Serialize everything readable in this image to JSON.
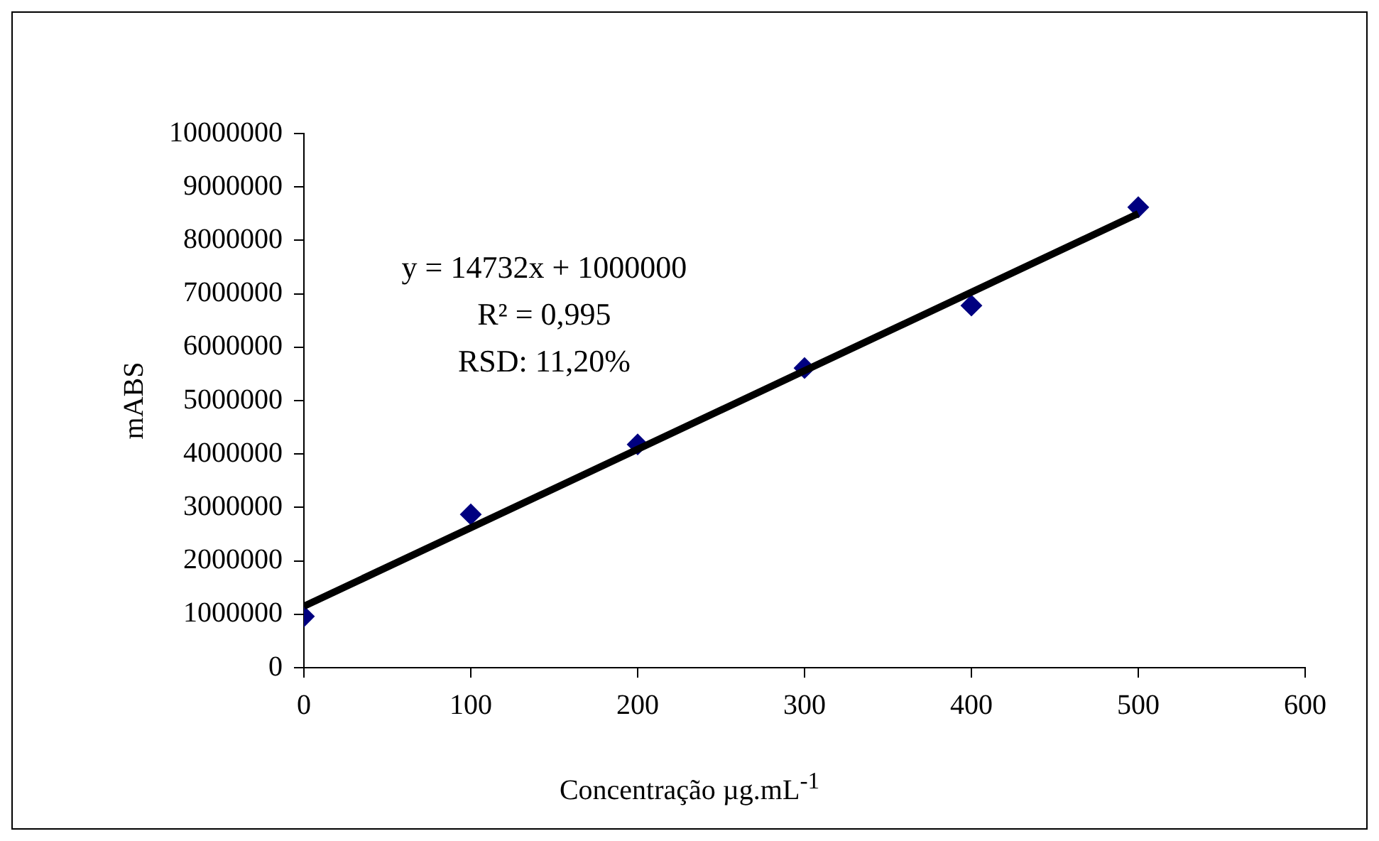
{
  "chart_data": {
    "type": "scatter",
    "xlabel": "Concentração µg.mL$^{-1}$",
    "ylabel": "mABS",
    "x": [
      0,
      100,
      200,
      300,
      400,
      500
    ],
    "series": [
      {
        "color": "#000080",
        "marker": "diamond",
        "values": [
          960000,
          2870000,
          4180000,
          5610000,
          6780000,
          8620000
        ]
      },
      {
        "type": "line",
        "color": "#000000",
        "x": [
          0,
          500
        ],
        "values": [
          1150000,
          8500000
        ]
      }
    ],
    "xlim": [
      0,
      600
    ],
    "xticks": [
      0,
      100,
      200,
      300,
      400,
      500,
      600
    ],
    "ylim": [
      0,
      10000000
    ],
    "yticks": [
      0,
      1000000,
      2000000,
      3000000,
      4000000,
      5000000,
      6000000,
      7000000,
      8000000,
      9000000,
      10000000
    ],
    "grid": false,
    "legend": false,
    "annotations": [
      "y = 14732x + 1000000",
      "R² = 0,995",
      "RSD: 11,20%"
    ]
  }
}
